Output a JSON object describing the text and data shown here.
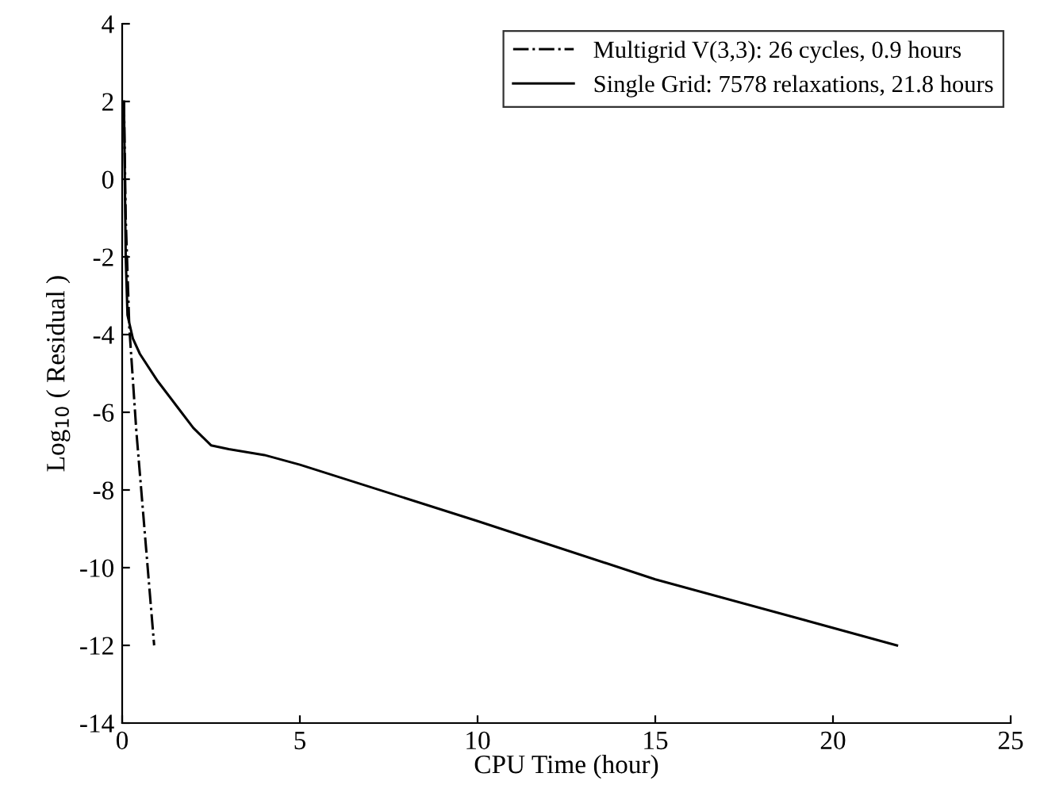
{
  "chart_data": {
    "type": "line",
    "xlabel": "CPU Time (hour)",
    "ylabel": "Log$_{10}$ ( Residual )",
    "xlim": [
      0,
      25
    ],
    "xticks": [
      0,
      5,
      10,
      15,
      20,
      25
    ],
    "ylim": [
      -14,
      4
    ],
    "yticks": [
      -14,
      -12,
      -10,
      -8,
      -6,
      -4,
      -2,
      0,
      2,
      4
    ],
    "legend": "top right",
    "grid": false,
    "series": [
      {
        "name": "Multigrid V(3,3): 26 cycles, 0.9 hours",
        "color": "#000000",
        "line_style": "dashdot",
        "x": [
          0.05,
          0.1,
          0.2,
          0.4,
          0.9
        ],
        "values": [
          2,
          -1,
          -3.8,
          -6.5,
          -12
        ]
      },
      {
        "name": "Single Grid: 7578 relaxations, 21.8 hours",
        "color": "#000000",
        "line_style": "solid",
        "x": [
          0.05,
          0.1,
          0.15,
          0.3,
          0.5,
          1,
          1.5,
          2,
          2.5,
          3,
          4,
          5,
          10,
          15,
          21.8
        ],
        "values": [
          2,
          -2,
          -3.5,
          -4.1,
          -4.5,
          -5.2,
          -5.8,
          -6.4,
          -6.85,
          -6.95,
          -7.1,
          -7.35,
          -8.8,
          -10.3,
          -12
        ]
      }
    ]
  }
}
